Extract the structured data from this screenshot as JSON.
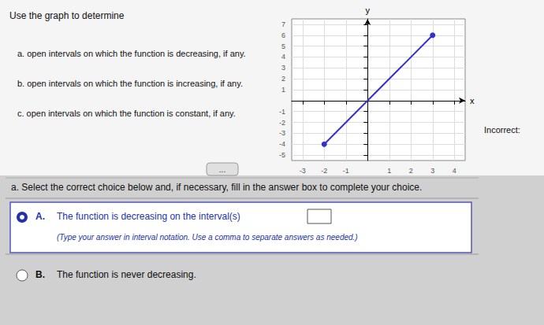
{
  "chart_data": {
    "type": "line",
    "x": [
      -2,
      3
    ],
    "values": [
      -4,
      6
    ],
    "color": "#3333cc",
    "marker": "circle",
    "xlim": [
      -3.5,
      4.5
    ],
    "ylim": [
      -5.5,
      7.5
    ],
    "xticks": [
      -3,
      -2,
      -1,
      1,
      2,
      3,
      4
    ],
    "yticks": [
      -5,
      -4,
      -3,
      -2,
      -1,
      1,
      2,
      3,
      4,
      5,
      6,
      7
    ],
    "grid": true,
    "x_label": "x",
    "y_label": "y",
    "annotations": [
      "Use the graph to determine",
      "a. open intervals on which the function is decreasing, if any.",
      "b. open intervals on which the function is increasing, if any.",
      "c. open intervals on which the function is constant, if any.",
      "...",
      "a. Select the correct choice below and, if necessary, fill in the answer box to complete your choice.",
      "A.",
      "The function is decreasing on the interval(s)",
      "(Type your answer in interval notation. Use a comma to separate answers as needed.)",
      "B.",
      "The function is never decreasing.",
      "Incorrect:"
    ]
  }
}
